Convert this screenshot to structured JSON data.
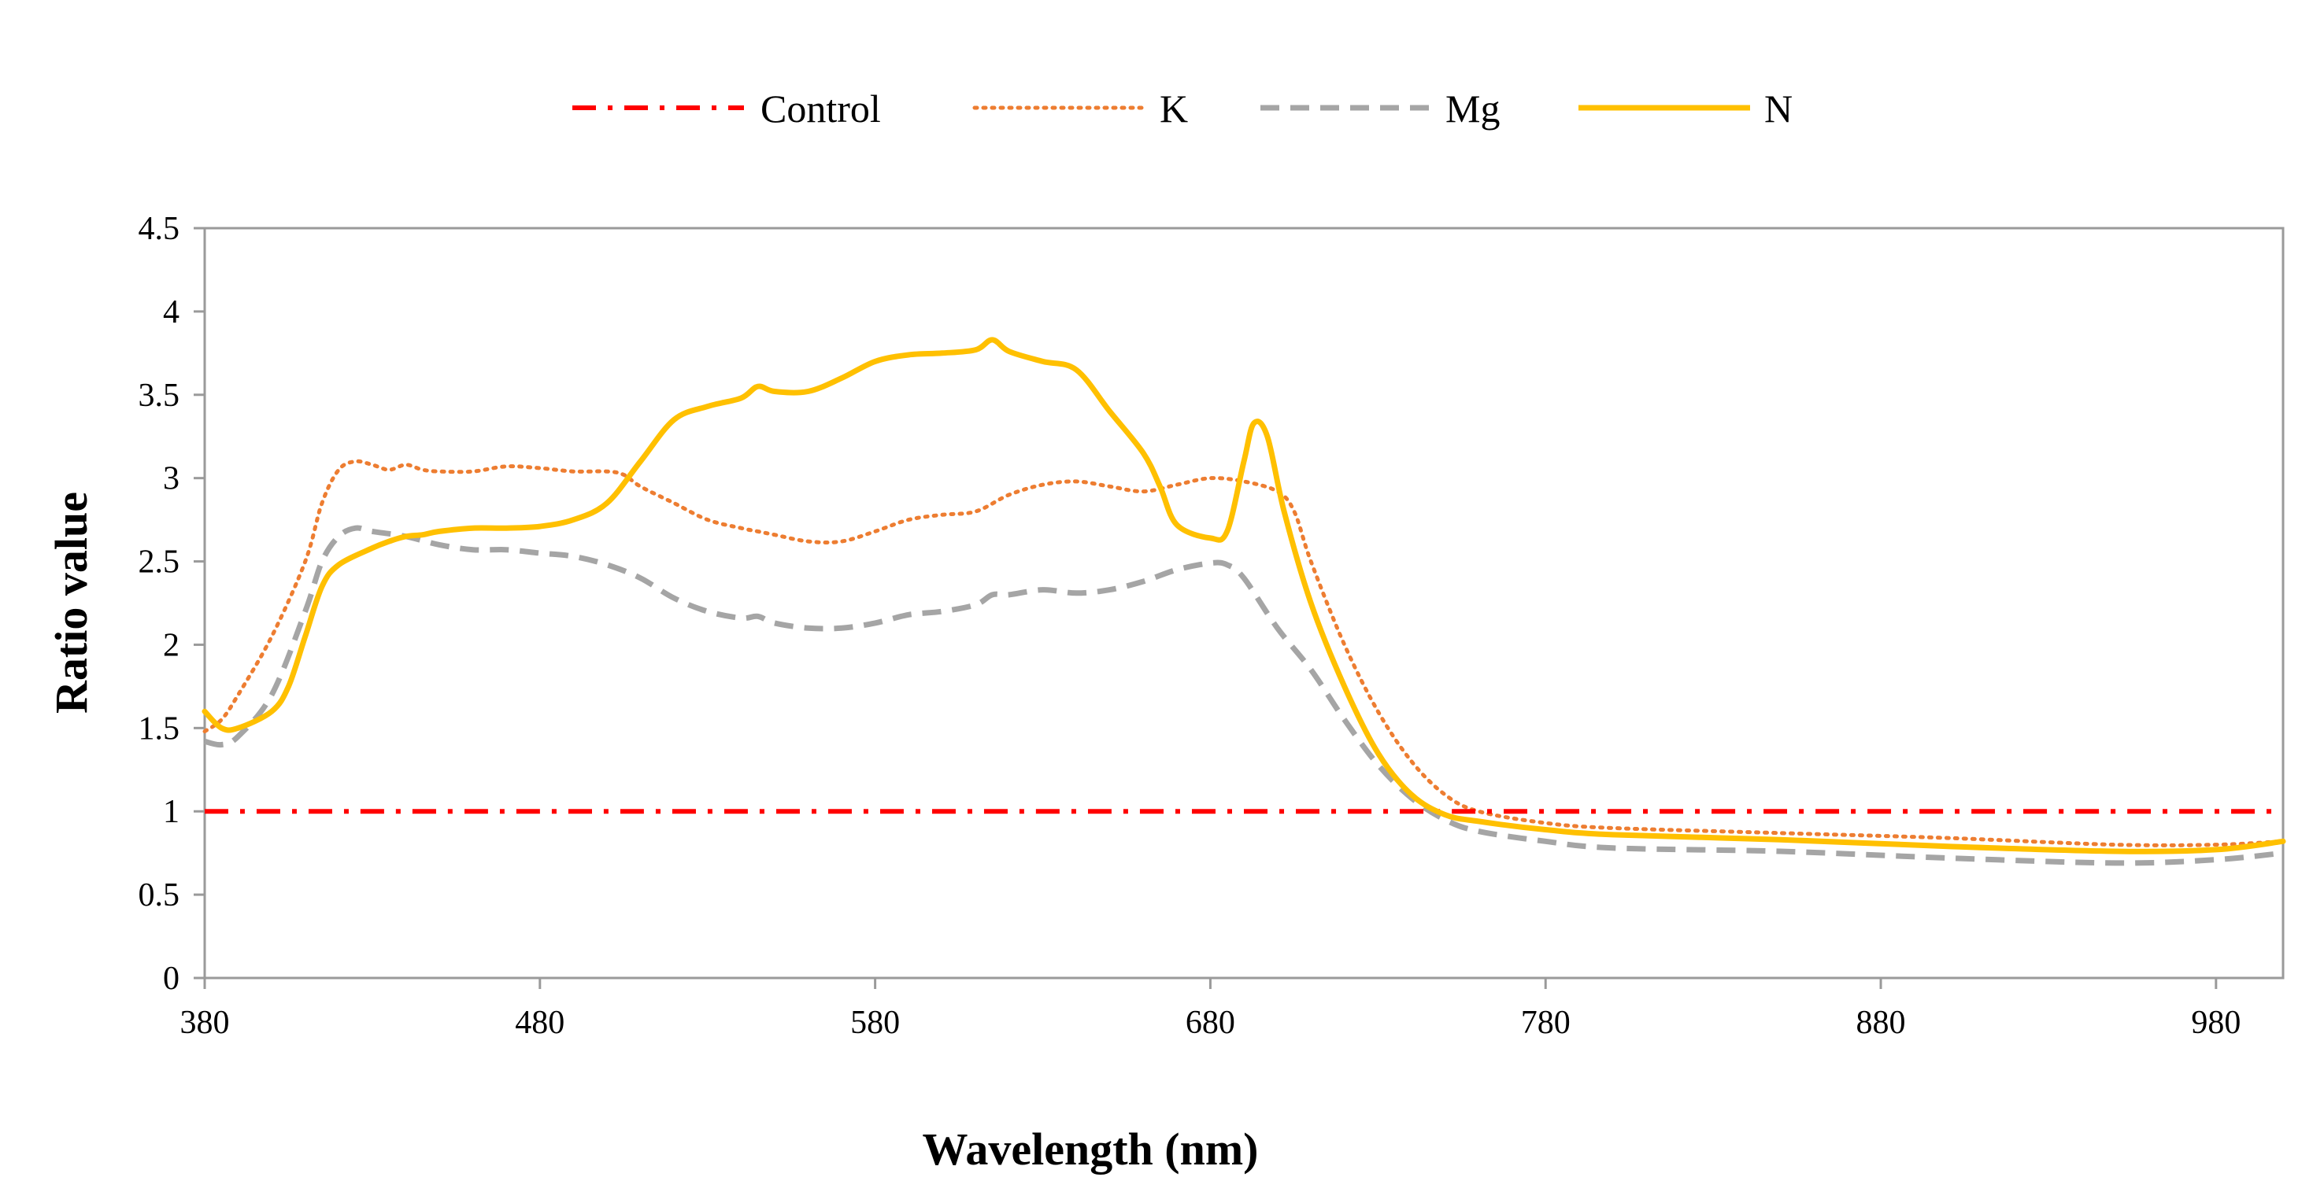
{
  "chart_data": {
    "type": "line",
    "title": "",
    "xlabel": "Wavelength (nm)",
    "ylabel": "Ratio value",
    "xlim": [
      380,
      1000
    ],
    "ylim": [
      0,
      4.5
    ],
    "x_ticks": [
      "380",
      "480",
      "580",
      "680",
      "780",
      "880",
      "980"
    ],
    "y_ticks": [
      "0",
      "0.5",
      "1",
      "1.5",
      "2",
      "2.5",
      "3",
      "3.5",
      "4",
      "4.5"
    ],
    "grid": false,
    "legend_position": "top",
    "series": [
      {
        "name": "Control",
        "color": "#ff0000",
        "style": "dash-dot",
        "points": [
          [
            380,
            1.0
          ],
          [
            1000,
            1.0
          ]
        ]
      },
      {
        "name": "K",
        "color": "#ed7d31",
        "style": "dotted",
        "points": [
          [
            380,
            1.48
          ],
          [
            385,
            1.55
          ],
          [
            390,
            1.7
          ],
          [
            400,
            2.05
          ],
          [
            410,
            2.5
          ],
          [
            415,
            2.85
          ],
          [
            420,
            3.05
          ],
          [
            425,
            3.1
          ],
          [
            430,
            3.08
          ],
          [
            435,
            3.05
          ],
          [
            440,
            3.08
          ],
          [
            445,
            3.05
          ],
          [
            450,
            3.04
          ],
          [
            460,
            3.04
          ],
          [
            470,
            3.07
          ],
          [
            480,
            3.06
          ],
          [
            490,
            3.04
          ],
          [
            500,
            3.04
          ],
          [
            505,
            3.02
          ],
          [
            510,
            2.95
          ],
          [
            520,
            2.85
          ],
          [
            530,
            2.75
          ],
          [
            540,
            2.7
          ],
          [
            545,
            2.68
          ],
          [
            550,
            2.66
          ],
          [
            560,
            2.62
          ],
          [
            570,
            2.62
          ],
          [
            580,
            2.68
          ],
          [
            590,
            2.75
          ],
          [
            600,
            2.78
          ],
          [
            610,
            2.8
          ],
          [
            620,
            2.9
          ],
          [
            630,
            2.96
          ],
          [
            640,
            2.98
          ],
          [
            650,
            2.95
          ],
          [
            660,
            2.92
          ],
          [
            670,
            2.96
          ],
          [
            680,
            3.0
          ],
          [
            690,
            2.98
          ],
          [
            700,
            2.92
          ],
          [
            705,
            2.8
          ],
          [
            710,
            2.5
          ],
          [
            720,
            2.0
          ],
          [
            730,
            1.6
          ],
          [
            740,
            1.3
          ],
          [
            750,
            1.1
          ],
          [
            760,
            1.0
          ],
          [
            780,
            0.93
          ],
          [
            800,
            0.9
          ],
          [
            850,
            0.87
          ],
          [
            900,
            0.84
          ],
          [
            950,
            0.8
          ],
          [
            980,
            0.8
          ],
          [
            1000,
            0.82
          ]
        ]
      },
      {
        "name": "Mg",
        "color": "#a5a5a5",
        "style": "dashed",
        "points": [
          [
            380,
            1.42
          ],
          [
            385,
            1.4
          ],
          [
            390,
            1.45
          ],
          [
            400,
            1.7
          ],
          [
            410,
            2.2
          ],
          [
            415,
            2.5
          ],
          [
            420,
            2.65
          ],
          [
            425,
            2.7
          ],
          [
            430,
            2.68
          ],
          [
            440,
            2.65
          ],
          [
            450,
            2.6
          ],
          [
            460,
            2.57
          ],
          [
            470,
            2.57
          ],
          [
            480,
            2.55
          ],
          [
            490,
            2.53
          ],
          [
            500,
            2.48
          ],
          [
            510,
            2.4
          ],
          [
            520,
            2.28
          ],
          [
            530,
            2.2
          ],
          [
            540,
            2.16
          ],
          [
            545,
            2.17
          ],
          [
            550,
            2.13
          ],
          [
            560,
            2.1
          ],
          [
            570,
            2.1
          ],
          [
            580,
            2.13
          ],
          [
            590,
            2.18
          ],
          [
            600,
            2.2
          ],
          [
            610,
            2.24
          ],
          [
            615,
            2.3
          ],
          [
            620,
            2.3
          ],
          [
            630,
            2.33
          ],
          [
            640,
            2.31
          ],
          [
            650,
            2.33
          ],
          [
            660,
            2.38
          ],
          [
            670,
            2.45
          ],
          [
            680,
            2.49
          ],
          [
            685,
            2.48
          ],
          [
            690,
            2.4
          ],
          [
            700,
            2.1
          ],
          [
            710,
            1.85
          ],
          [
            720,
            1.55
          ],
          [
            730,
            1.28
          ],
          [
            740,
            1.08
          ],
          [
            750,
            0.95
          ],
          [
            760,
            0.88
          ],
          [
            780,
            0.82
          ],
          [
            800,
            0.78
          ],
          [
            850,
            0.76
          ],
          [
            900,
            0.72
          ],
          [
            950,
            0.69
          ],
          [
            980,
            0.71
          ],
          [
            1000,
            0.75
          ]
        ]
      },
      {
        "name": "N",
        "color": "#ffc000",
        "style": "solid",
        "points": [
          [
            380,
            1.6
          ],
          [
            385,
            1.5
          ],
          [
            390,
            1.5
          ],
          [
            400,
            1.6
          ],
          [
            405,
            1.75
          ],
          [
            410,
            2.05
          ],
          [
            415,
            2.35
          ],
          [
            420,
            2.48
          ],
          [
            430,
            2.58
          ],
          [
            435,
            2.62
          ],
          [
            440,
            2.65
          ],
          [
            445,
            2.66
          ],
          [
            450,
            2.68
          ],
          [
            460,
            2.7
          ],
          [
            470,
            2.7
          ],
          [
            480,
            2.71
          ],
          [
            490,
            2.75
          ],
          [
            500,
            2.85
          ],
          [
            510,
            3.1
          ],
          [
            520,
            3.35
          ],
          [
            530,
            3.43
          ],
          [
            540,
            3.48
          ],
          [
            545,
            3.55
          ],
          [
            550,
            3.52
          ],
          [
            560,
            3.52
          ],
          [
            570,
            3.6
          ],
          [
            580,
            3.7
          ],
          [
            590,
            3.74
          ],
          [
            600,
            3.75
          ],
          [
            610,
            3.77
          ],
          [
            615,
            3.83
          ],
          [
            620,
            3.76
          ],
          [
            630,
            3.7
          ],
          [
            640,
            3.65
          ],
          [
            650,
            3.4
          ],
          [
            660,
            3.15
          ],
          [
            665,
            2.95
          ],
          [
            670,
            2.72
          ],
          [
            680,
            2.64
          ],
          [
            685,
            2.68
          ],
          [
            690,
            3.1
          ],
          [
            693,
            3.33
          ],
          [
            697,
            3.25
          ],
          [
            702,
            2.8
          ],
          [
            710,
            2.25
          ],
          [
            720,
            1.75
          ],
          [
            730,
            1.35
          ],
          [
            740,
            1.1
          ],
          [
            750,
            0.98
          ],
          [
            760,
            0.94
          ],
          [
            780,
            0.89
          ],
          [
            800,
            0.86
          ],
          [
            850,
            0.83
          ],
          [
            900,
            0.79
          ],
          [
            950,
            0.76
          ],
          [
            980,
            0.77
          ],
          [
            1000,
            0.82
          ]
        ]
      }
    ]
  }
}
